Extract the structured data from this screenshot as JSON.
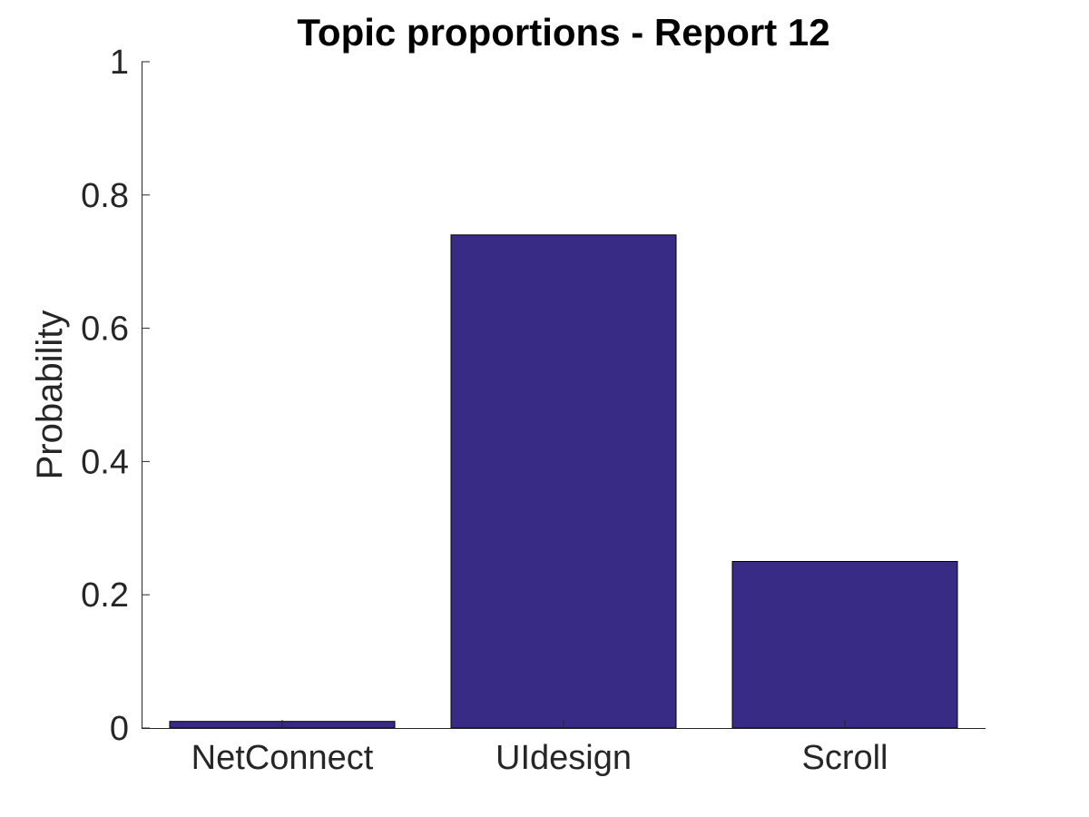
{
  "chart_data": {
    "type": "bar",
    "title": "Topic proportions - Report 12",
    "xlabel": "",
    "ylabel": "Probability",
    "categories": [
      "NetConnect",
      "UIdesign",
      "Scroll"
    ],
    "values": [
      0.01,
      0.74,
      0.25
    ],
    "ylim": [
      0,
      1
    ],
    "yticks": [
      0,
      0.2,
      0.4,
      0.6,
      0.8,
      1
    ],
    "ytick_labels": [
      "0",
      "0.2",
      "0.4",
      "0.6",
      "0.8",
      "1"
    ],
    "bar_color": "#372b85",
    "grid": false
  }
}
